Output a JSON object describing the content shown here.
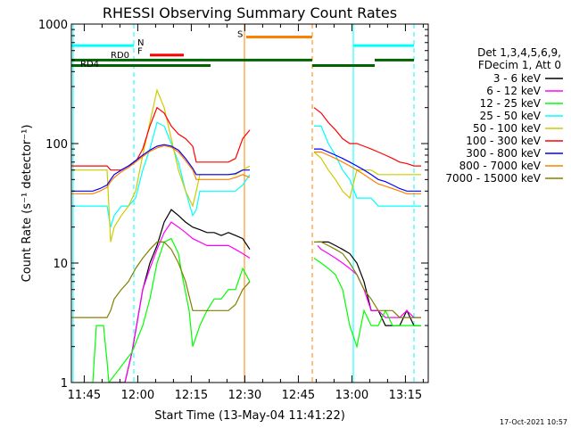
{
  "chart_data": {
    "type": "line",
    "title": "RHESSI Observing Summary Count Rates",
    "xlabel": "Start Time (13-May-04 11:41:22)",
    "ylabel": "Count Rate (s⁻¹ detector⁻¹)",
    "x_unit": "minutes since 11:41:22",
    "xlim": [
      0,
      100
    ],
    "ylim": [
      1,
      1000
    ],
    "y_scale": "log",
    "grid": false,
    "legend_position": "top-right outside plot",
    "x_tick_labels": [
      {
        "label": "11:45",
        "t": 3.6
      },
      {
        "label": "12:00",
        "t": 18.6
      },
      {
        "label": "12:15",
        "t": 33.6
      },
      {
        "label": "12:30",
        "t": 48.6
      },
      {
        "label": "12:45",
        "t": 63.6
      },
      {
        "label": "13:00",
        "t": 78.6
      },
      {
        "label": "13:15",
        "t": 93.6
      }
    ],
    "y_tick_labels": [
      {
        "label": "1",
        "v": 1
      },
      {
        "label": "10",
        "v": 10
      },
      {
        "label": "100",
        "v": 100
      },
      {
        "label": "1000",
        "v": 1000
      }
    ],
    "legend_header": [
      "Det 1,3,4,5,6,9,",
      "FDecim 1, Att 0"
    ],
    "series": [
      {
        "name": "3 - 6 keV",
        "color": "#000000",
        "x": [
          0,
          10,
          10.5,
          15,
          17,
          20,
          22,
          24,
          26,
          28,
          30,
          32,
          34,
          36,
          38,
          40,
          42,
          44,
          46,
          48,
          50,
          52,
          60,
          67,
          69,
          70,
          72,
          74,
          76,
          78,
          80,
          82,
          84,
          86,
          88,
          90,
          92,
          94,
          96,
          98
        ],
        "y": [
          null,
          null,
          1,
          1,
          1.8,
          6,
          10,
          14,
          22,
          28,
          25,
          22,
          20,
          19,
          18,
          18,
          17,
          18,
          17,
          16,
          13,
          null,
          null,
          null,
          15,
          15,
          15,
          14,
          13,
          12,
          10,
          7,
          4,
          4,
          3,
          3,
          3,
          4,
          3,
          3
        ]
      },
      {
        "name": "6 - 12 keV",
        "color": "#ff00ff",
        "x": [
          0,
          10,
          10.5,
          15,
          17,
          20,
          22,
          24,
          26,
          28,
          30,
          32,
          34,
          36,
          38,
          40,
          42,
          44,
          46,
          48,
          50,
          52,
          60,
          67,
          69,
          70,
          72,
          74,
          76,
          78,
          80,
          82,
          84,
          86,
          88,
          90,
          92,
          94,
          96,
          98
        ],
        "y": [
          null,
          null,
          1,
          1,
          1.8,
          6,
          9,
          13,
          18,
          22,
          20,
          18,
          16,
          15,
          14,
          14,
          14,
          14,
          13,
          12,
          11,
          null,
          null,
          null,
          14,
          13,
          12,
          11,
          10,
          9,
          8,
          6,
          4,
          4,
          3.5,
          3.5,
          3.5,
          4,
          3.5,
          3.5
        ]
      },
      {
        "name": "12 - 25 keV",
        "color": "#00ff00",
        "x": [
          0,
          1,
          6,
          7,
          9,
          10,
          10.5,
          15,
          17,
          20,
          22,
          24,
          26,
          28,
          30,
          31,
          33,
          34,
          36,
          38,
          40,
          42,
          44,
          46,
          48,
          50,
          52,
          60,
          67,
          68,
          70,
          72,
          74,
          76,
          78,
          80,
          82,
          84,
          86,
          88,
          90,
          92,
          94,
          96,
          98
        ],
        "y": [
          null,
          1,
          1,
          3,
          3,
          1.5,
          1,
          1.5,
          1.8,
          3,
          5,
          10,
          15,
          16,
          12,
          8,
          4,
          2,
          3,
          4,
          5,
          5,
          6,
          6,
          9,
          7,
          null,
          null,
          null,
          11,
          10,
          9,
          8,
          6,
          3,
          2,
          4,
          3,
          3,
          4,
          3,
          3,
          3,
          3,
          3
        ]
      },
      {
        "name": "25 - 50 keV",
        "color": "#00ffff",
        "x": [
          0,
          2,
          4,
          6,
          8,
          10,
          11,
          12,
          14,
          16,
          18,
          20,
          22,
          24,
          26,
          28,
          30,
          32,
          34,
          35,
          36,
          38,
          40,
          42,
          44,
          46,
          48,
          50,
          52,
          60,
          67,
          68,
          70,
          72,
          74,
          76,
          78,
          80,
          82,
          84,
          86,
          88,
          90,
          92,
          94,
          96,
          98
        ],
        "y": [
          30,
          30,
          30,
          30,
          30,
          30,
          20,
          25,
          30,
          30,
          35,
          60,
          90,
          150,
          140,
          100,
          70,
          40,
          25,
          28,
          40,
          40,
          40,
          40,
          40,
          40,
          45,
          55,
          null,
          null,
          null,
          140,
          140,
          100,
          80,
          60,
          50,
          35,
          35,
          35,
          30,
          30,
          30,
          30,
          30,
          30,
          30
        ]
      },
      {
        "name": "50 - 100 keV",
        "color": "#cccc00",
        "x": [
          0,
          2,
          4,
          6,
          8,
          10,
          11,
          12,
          14,
          16,
          18,
          20,
          22,
          24,
          26,
          28,
          30,
          32,
          34,
          35,
          36,
          38,
          40,
          42,
          44,
          46,
          48,
          50,
          52,
          60,
          67,
          68,
          70,
          72,
          74,
          76,
          78,
          80,
          82,
          84,
          86,
          88,
          90,
          92,
          94,
          96,
          98
        ],
        "y": [
          60,
          60,
          60,
          60,
          60,
          60,
          15,
          20,
          25,
          30,
          40,
          80,
          150,
          280,
          200,
          110,
          60,
          40,
          30,
          40,
          55,
          55,
          55,
          55,
          55,
          55,
          60,
          65,
          null,
          null,
          null,
          85,
          75,
          60,
          50,
          40,
          35,
          60,
          60,
          60,
          55,
          55,
          55,
          55,
          55,
          55,
          55
        ]
      },
      {
        "name": "100 - 300 keV",
        "color": "#ff0000",
        "x": [
          0,
          2,
          4,
          6,
          8,
          10,
          11,
          12,
          14,
          16,
          18,
          20,
          22,
          24,
          26,
          28,
          30,
          32,
          34,
          35,
          36,
          38,
          40,
          42,
          44,
          46,
          48,
          50,
          52,
          60,
          67,
          68,
          70,
          72,
          74,
          76,
          78,
          80,
          82,
          84,
          86,
          88,
          90,
          92,
          94,
          96,
          98
        ],
        "y": [
          65,
          65,
          65,
          65,
          65,
          65,
          60,
          60,
          60,
          65,
          70,
          90,
          140,
          200,
          180,
          140,
          120,
          110,
          95,
          70,
          70,
          70,
          70,
          70,
          70,
          75,
          110,
          130,
          null,
          null,
          null,
          200,
          180,
          150,
          130,
          110,
          100,
          100,
          95,
          90,
          85,
          80,
          75,
          70,
          68,
          65,
          65
        ]
      },
      {
        "name": "300 - 800 keV",
        "color": "#0000ff",
        "x": [
          0,
          2,
          4,
          6,
          8,
          10,
          11,
          12,
          14,
          16,
          18,
          20,
          22,
          24,
          26,
          28,
          30,
          32,
          34,
          35,
          36,
          38,
          40,
          42,
          44,
          46,
          48,
          50,
          52,
          60,
          67,
          68,
          70,
          72,
          74,
          76,
          78,
          80,
          82,
          84,
          86,
          88,
          90,
          92,
          94,
          96,
          98
        ],
        "y": [
          40,
          40,
          40,
          40,
          42,
          45,
          50,
          55,
          60,
          65,
          72,
          80,
          88,
          95,
          98,
          95,
          88,
          75,
          62,
          55,
          55,
          55,
          55,
          55,
          55,
          56,
          60,
          60,
          null,
          null,
          null,
          90,
          90,
          85,
          80,
          75,
          70,
          65,
          60,
          55,
          50,
          48,
          45,
          42,
          40,
          40,
          40
        ]
      },
      {
        "name": "800 - 7000 keV",
        "color": "#ff8000",
        "x": [
          0,
          2,
          4,
          6,
          8,
          10,
          11,
          12,
          14,
          16,
          18,
          20,
          22,
          24,
          26,
          28,
          30,
          32,
          34,
          35,
          36,
          38,
          40,
          42,
          44,
          46,
          48,
          50,
          52,
          60,
          67,
          68,
          70,
          72,
          74,
          76,
          78,
          80,
          82,
          84,
          86,
          88,
          90,
          92,
          94,
          96,
          98
        ],
        "y": [
          38,
          38,
          38,
          38,
          40,
          43,
          48,
          52,
          58,
          63,
          70,
          78,
          86,
          92,
          96,
          93,
          85,
          72,
          60,
          50,
          50,
          50,
          50,
          50,
          50,
          52,
          55,
          52,
          null,
          null,
          null,
          85,
          85,
          80,
          75,
          70,
          65,
          60,
          55,
          50,
          46,
          44,
          42,
          40,
          38,
          38,
          38
        ]
      },
      {
        "name": "7000 - 15000 keV",
        "color": "#808000",
        "x": [
          0,
          2,
          4,
          6,
          8,
          10,
          11,
          12,
          14,
          16,
          18,
          20,
          22,
          24,
          26,
          28,
          30,
          32,
          34,
          36,
          38,
          40,
          42,
          44,
          46,
          48,
          50,
          52,
          60,
          67,
          68,
          70,
          72,
          74,
          76,
          78,
          80,
          82,
          84,
          86,
          88,
          90,
          92,
          94,
          96,
          98
        ],
        "y": [
          3.5,
          3.5,
          3.5,
          3.5,
          3.5,
          3.5,
          4,
          5,
          6,
          7,
          9,
          11,
          13,
          15,
          15,
          13,
          10,
          7,
          4,
          4,
          4,
          4,
          4,
          4,
          4.5,
          6,
          7,
          null,
          null,
          null,
          15,
          15,
          14,
          13,
          12,
          10,
          8,
          6,
          5,
          4,
          4,
          4,
          3.5,
          3.5,
          3.5,
          3.5
        ]
      }
    ],
    "annotations": [
      {
        "label": "N",
        "color": "#00ffff"
      },
      {
        "label": "F",
        "color": "#ff0000"
      },
      {
        "label": "S",
        "color": "#ff8000"
      },
      {
        "label": "RD0",
        "color": "#006400"
      },
      {
        "label": "RD4",
        "color": "#006400"
      }
    ],
    "timestamp": "17-Oct-2021 10:57"
  }
}
